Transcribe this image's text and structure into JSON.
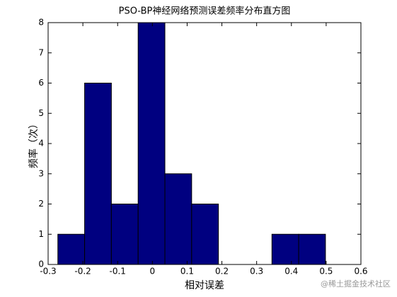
{
  "chart_data": {
    "type": "histogram",
    "title": "PSO-BP神经网络预测误差频率分布直方图",
    "x_label": "相对误差",
    "y_label": "频率（次）",
    "bins": [
      -0.272,
      -0.195,
      -0.118,
      -0.041,
      0.036,
      0.113,
      0.19,
      0.267,
      0.344,
      0.421,
      0.498
    ],
    "counts": [
      1,
      6,
      2,
      8,
      3,
      2,
      0,
      0,
      1,
      1
    ],
    "color": "#000080",
    "xlim": [
      -0.3,
      0.6
    ],
    "xticks": [
      -0.3,
      -0.2,
      -0.1,
      0,
      0.1,
      0.2,
      0.3,
      0.4,
      0.5,
      0.6
    ],
    "ylim": [
      0,
      8
    ],
    "yticks": [
      0,
      1,
      2,
      3,
      4,
      5,
      6,
      7,
      8
    ],
    "grid": false
  },
  "watermark": "@稀土掘金技术社区"
}
